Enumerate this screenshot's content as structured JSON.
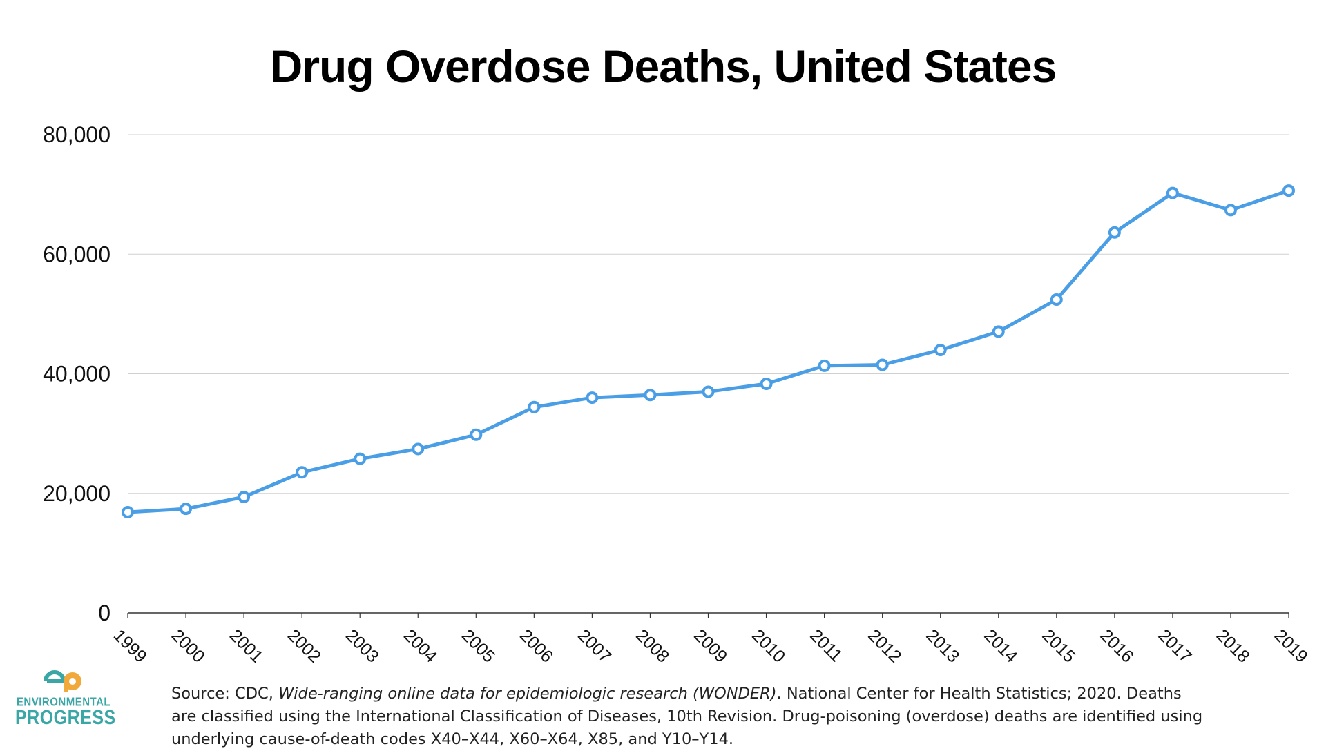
{
  "chart_data": {
    "type": "line",
    "title": "Drug Overdose Deaths, United States",
    "xlabel": "",
    "ylabel": "",
    "categories": [
      "1999",
      "2000",
      "2001",
      "2002",
      "2003",
      "2004",
      "2005",
      "2006",
      "2007",
      "2008",
      "2009",
      "2010",
      "2011",
      "2012",
      "2013",
      "2014",
      "2015",
      "2016",
      "2017",
      "2018",
      "2019"
    ],
    "values": [
      16849,
      17415,
      19394,
      23518,
      25785,
      27424,
      29813,
      34425,
      36010,
      36450,
      37004,
      38329,
      41340,
      41502,
      43982,
      47055,
      52404,
      63632,
      70237,
      67367,
      70630
    ],
    "ylim": [
      0,
      80000
    ],
    "yticks": [
      0,
      20000,
      40000,
      60000,
      80000
    ],
    "ytick_labels": [
      "0",
      "20,000",
      "40,000",
      "60,000",
      "80,000"
    ],
    "grid": true,
    "line_color": "#4a9ee6"
  },
  "source": {
    "prefix": "Source: CDC, ",
    "italic": "Wide-ranging online data for epidemiologic research (WONDER)",
    "line1_rest": ". National Center for Health Statistics; 2020.  Deaths",
    "line2": "are classified using the International Classification of Diseases, 10th Revision. Drug-poisoning (overdose) deaths are identified using",
    "line3": "underlying cause-of-death codes X40–X44, X60–X64, X85, and Y10–Y14."
  },
  "logo": {
    "line1": "ENVIRONMENTAL",
    "line2": "PROGRESS",
    "color": "#3aa7a6",
    "accent": "#f2a93b"
  }
}
